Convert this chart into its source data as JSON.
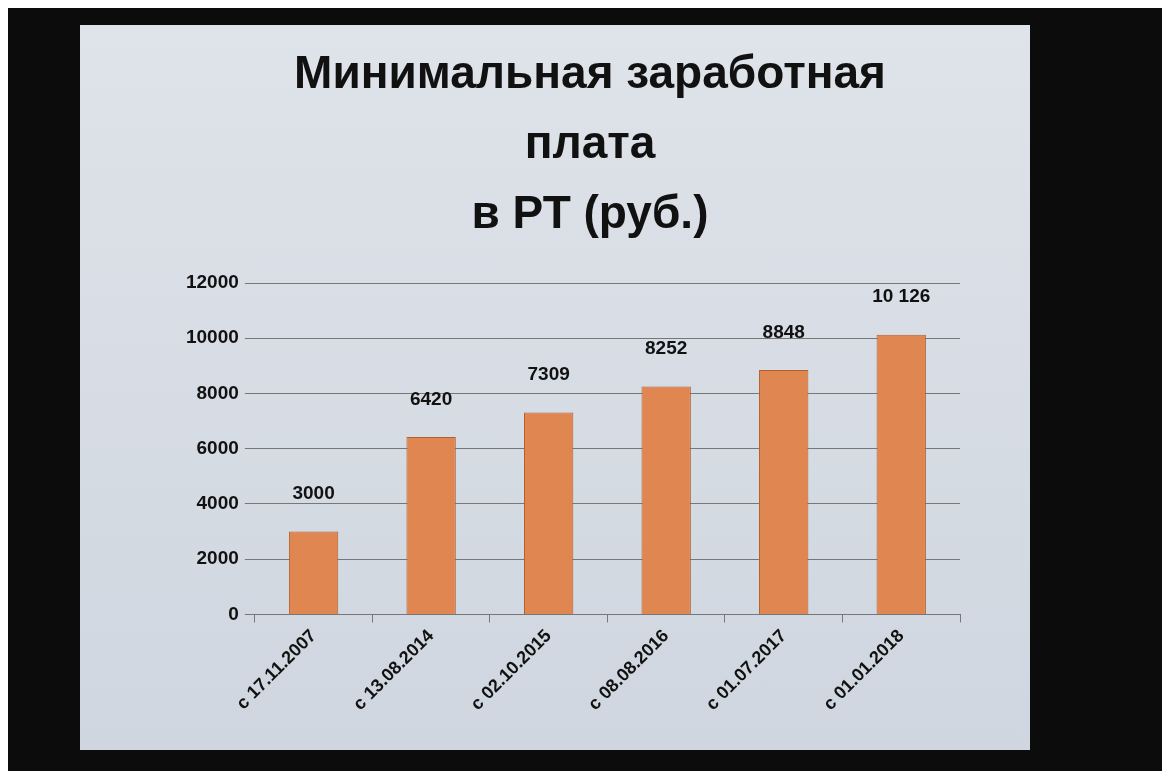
{
  "chart_data": {
    "type": "bar",
    "title": "Минимальная заработная\nплата\nв РТ (руб.)",
    "categories": [
      "с 17.11.2007",
      "с 13.08.2014",
      "с 02.10.2015",
      "с 08.08.2016",
      "с 01.07.2017",
      "с 01.01.2018"
    ],
    "values": [
      3000,
      6420,
      7309,
      8252,
      8848,
      10126
    ],
    "value_labels": [
      "3000",
      "6420",
      "7309",
      "8252",
      "8848",
      "10 126"
    ],
    "color": "#e08650",
    "ylim": [
      0,
      12000
    ],
    "yticks": [
      0,
      2000,
      4000,
      6000,
      8000,
      10000,
      12000
    ],
    "grid": "y"
  }
}
